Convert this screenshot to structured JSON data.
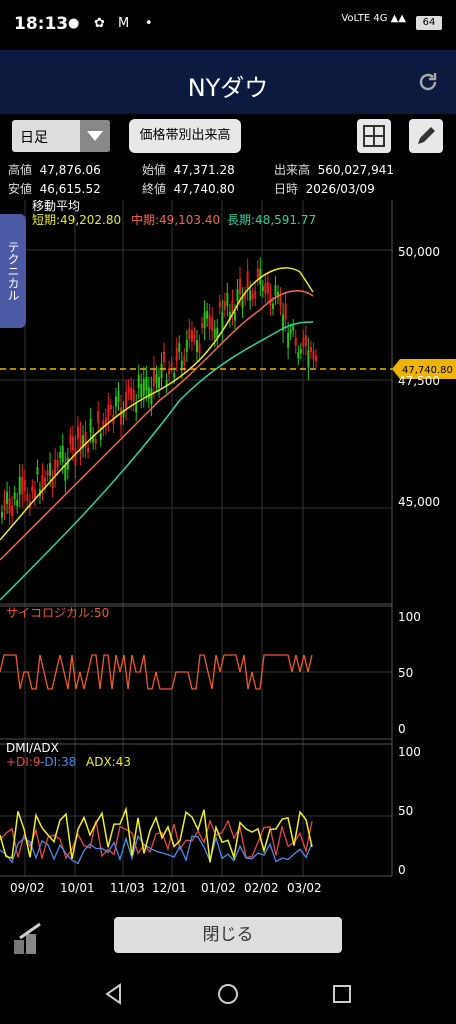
{
  "status": {
    "time": "18:13",
    "battery": "64",
    "icons": [
      "line-icon",
      "app-icon",
      "gmail-icon",
      "dot-icon"
    ]
  },
  "header": {
    "title": "NYダウ"
  },
  "toolbar": {
    "period": "日足",
    "price_volume_button": "価格帯別出来高"
  },
  "info": {
    "high_label": "高値",
    "high": "47,876.06",
    "open_label": "始値",
    "open": "47,371.28",
    "volume_label": "出来高",
    "volume": "560,027,941",
    "low_label": "安値",
    "low": "46,615.52",
    "close_label": "終値",
    "close": "47,740.80",
    "date_label": "日時",
    "date": "2026/03/09"
  },
  "side_tab": "テクニカル",
  "chart": {
    "ma_title": "移動平均",
    "ma_short": "短期:49,202.80",
    "ma_mid": "中期:49,103.40",
    "ma_long": "長期:48,591.77",
    "price_ticks": [
      "50,000",
      "47,500",
      "45,000"
    ],
    "current_price": "47,740.80",
    "psy_label": "サイコロジカル:50",
    "psy_ticks": [
      "100",
      "50",
      "0"
    ],
    "dmi_title": "DMI/ADX",
    "dmi_plus": "+DI:9",
    "dmi_minus": "-DI:38",
    "adx": "ADX:43",
    "dmi_ticks": [
      "100",
      "50",
      "0"
    ],
    "x_ticks": [
      "09/02",
      "10/01",
      "11/03",
      "12/01",
      "01/02",
      "02/02",
      "03/02"
    ]
  },
  "colors": {
    "up": "#27c21b",
    "down": "#e22020",
    "ma_short": "#e9e92a",
    "ma_mid": "#f06a4a",
    "ma_long": "#2dd4a0",
    "psy": "#f05a28",
    "current": "#f0b400",
    "dmi_plus": "#e84848",
    "dmi_minus": "#4b8de8",
    "adx": "#f0f020"
  },
  "footer": {
    "close_button": "閉じる"
  }
}
